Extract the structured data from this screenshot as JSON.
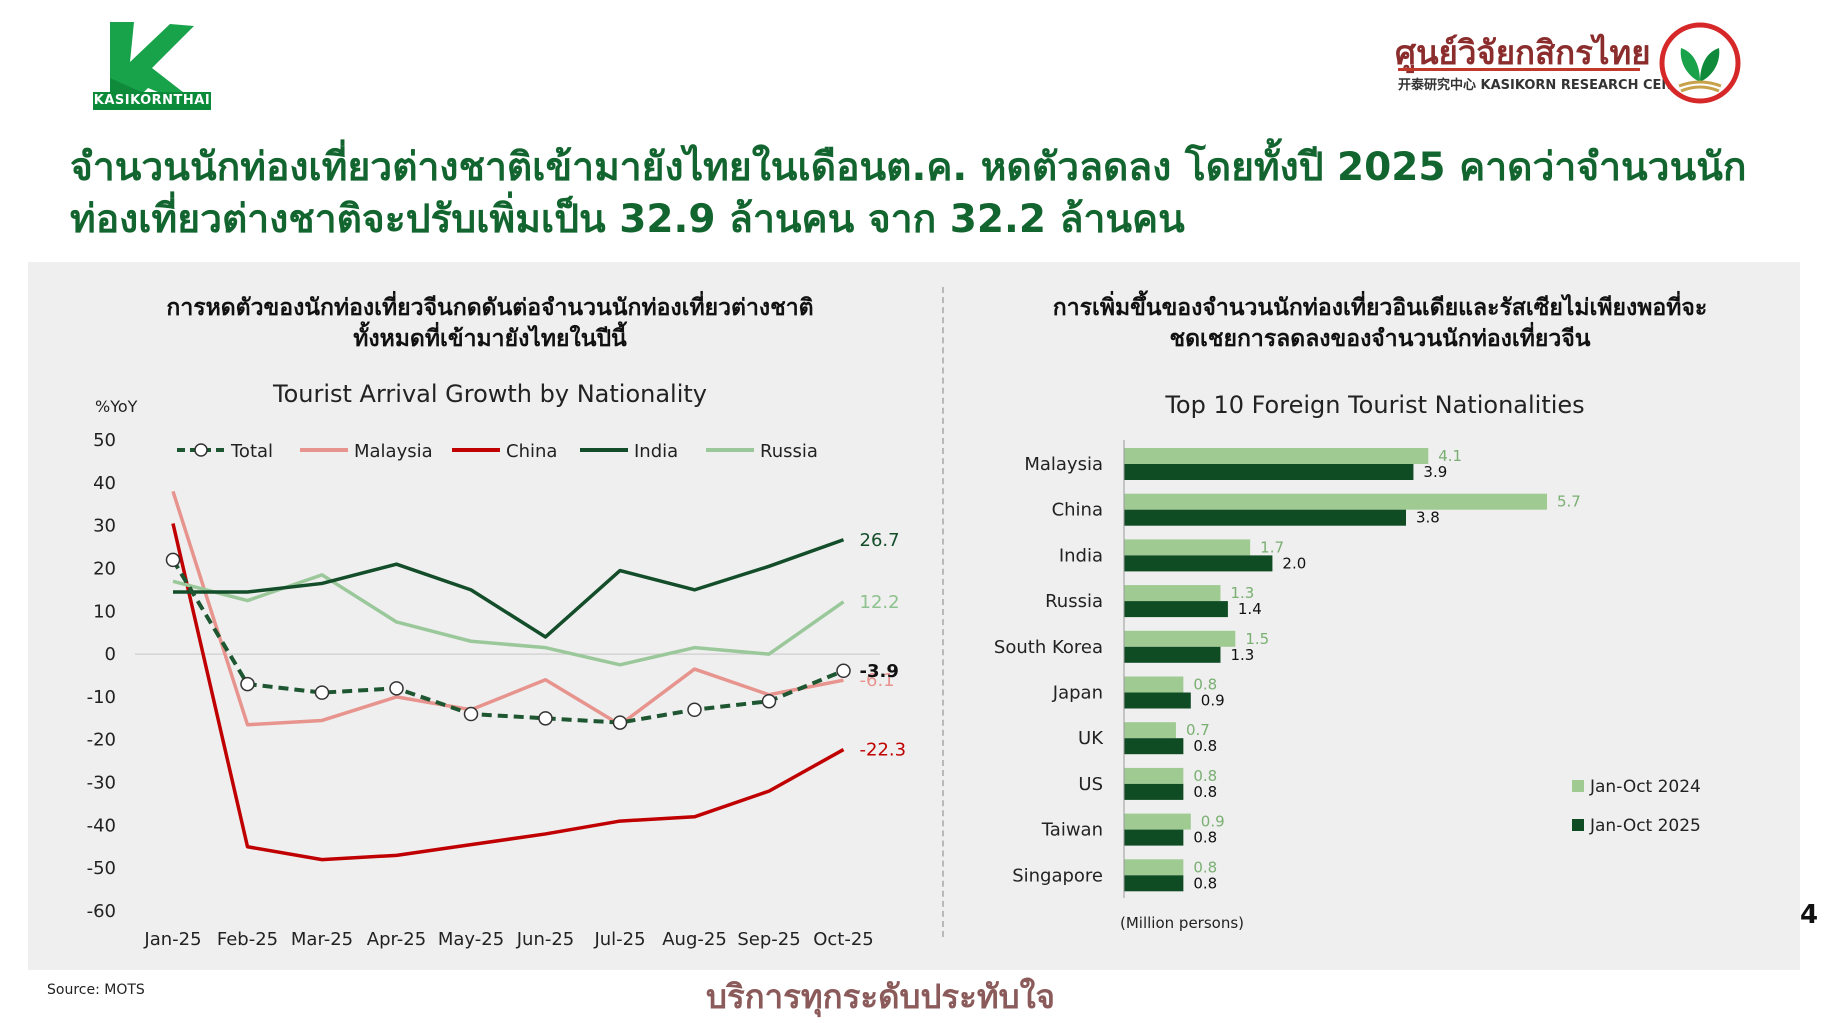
{
  "header": {
    "logo_text": "KASIKORNTHAI",
    "research_center_name": "ศูนย์วิจัยกสิกรไทย",
    "research_center_sub": "开泰研究中心 KASIKORN RESEARCH CENTER"
  },
  "headline": "จำนวนนักท่องเที่ยวต่างชาติเข้ามายังไทยในเดือนต.ค. หดตัวลดลง โดยทั้งปี 2025 คาดว่าจำนวนนักท่องเที่ยวต่างชาติจะปรับเพิ่มเป็น 32.9 ล้านคน จาก 32.2 ล้านคน",
  "left_section": {
    "title_line1": "การหดตัวของนักท่องเที่ยวจีนกดดันต่อจำนวนนักท่องเที่ยวต่างชาติ",
    "title_line2": "ทั้งหมดที่เข้ามายังไทยในปีนี้"
  },
  "right_section": {
    "title_line1": "การเพิ่มขึ้นของจำนวนนักท่องเที่ยวอินเดียและรัสเซียไม่เพียงพอที่จะ",
    "title_line2": "ชดเชยการลดลงของจำนวนนักท่องเที่ยวจีน"
  },
  "chart_data": [
    {
      "type": "line",
      "title": "Tourist Arrival Growth by Nationality",
      "ylabel": "%YoY",
      "xlabel": "",
      "ylim": [
        -60,
        50
      ],
      "yticks": [
        50,
        40,
        30,
        20,
        10,
        0,
        -10,
        -20,
        -30,
        -40,
        -50,
        -60
      ],
      "grid": false,
      "legend_position": "top",
      "categories": [
        "Jan-25",
        "Feb-25",
        "Mar-25",
        "Apr-25",
        "May-25",
        "Jun-25",
        "Jul-25",
        "Aug-25",
        "Sep-25",
        "Oct-25"
      ],
      "series": [
        {
          "name": "Total",
          "color": "#1e5631",
          "style": "dashed-markers",
          "values": [
            22,
            -7,
            -9,
            -8,
            -14,
            -15,
            -16,
            -13,
            -11,
            -3.9
          ],
          "end_label": "-3.9",
          "label_color": "#111111"
        },
        {
          "name": "Malaysia",
          "color": "#e8948e",
          "style": "solid",
          "values": [
            38,
            -16.5,
            -15.5,
            -10,
            -13,
            -6,
            -16.5,
            -3.5,
            -9.5,
            -6.1
          ],
          "end_label": "-6.1",
          "label_color": "#e8948e"
        },
        {
          "name": "China",
          "color": "#c00000",
          "style": "solid",
          "values": [
            30.5,
            -45,
            -48,
            -47,
            -44.5,
            -42,
            -39,
            -38,
            -32,
            -22.3
          ],
          "end_label": "-22.3",
          "label_color": "#c00000"
        },
        {
          "name": "India",
          "color": "#134d2a",
          "style": "solid",
          "values": [
            14.5,
            14.5,
            16.5,
            21,
            15,
            4,
            19.5,
            15,
            20.5,
            26.7
          ],
          "end_label": "26.7",
          "label_color": "#134d2a"
        },
        {
          "name": "Russia",
          "color": "#9bc89b",
          "style": "solid",
          "values": [
            17,
            12.5,
            18.5,
            7.5,
            3,
            1.5,
            -2.5,
            1.5,
            0,
            12.2
          ],
          "end_label": "12.2",
          "label_color": "#8dc18d"
        }
      ]
    },
    {
      "type": "bar",
      "orientation": "horizontal",
      "title": "Top 10 Foreign Tourist Nationalities",
      "xlabel": "(Million persons)",
      "xlim": [
        0,
        6
      ],
      "legend_position": "bottom-right",
      "categories": [
        "Malaysia",
        "China",
        "India",
        "Russia",
        "South Korea",
        "Japan",
        "UK",
        "US",
        "Taiwan",
        "Singapore"
      ],
      "series": [
        {
          "name": "Jan-Oct 2024",
          "color": "#9fcb92",
          "label_color": "#7aaf72",
          "values": [
            4.1,
            5.7,
            1.7,
            1.3,
            1.5,
            0.8,
            0.7,
            0.8,
            0.9,
            0.8
          ],
          "labels": [
            "4.1",
            "5.7",
            "1.7",
            "1.3",
            "1.5",
            "0.8",
            "0.7",
            "0.8",
            "0.9",
            "0.8"
          ]
        },
        {
          "name": "Jan-Oct 2025",
          "color": "#0f4b23",
          "label_color": "#111111",
          "values": [
            3.9,
            3.8,
            2.0,
            1.4,
            1.3,
            0.9,
            0.8,
            0.8,
            0.8,
            0.8
          ],
          "labels": [
            "3.9",
            "3.8",
            "2.0",
            "1.4",
            "1.3",
            "0.9",
            "0.8",
            "0.8",
            "0.8",
            "0.8"
          ]
        }
      ]
    }
  ],
  "footer": {
    "source": "Source: MOTS",
    "slogan": "บริการทุกระดับประทับใจ",
    "page_number": "4"
  }
}
